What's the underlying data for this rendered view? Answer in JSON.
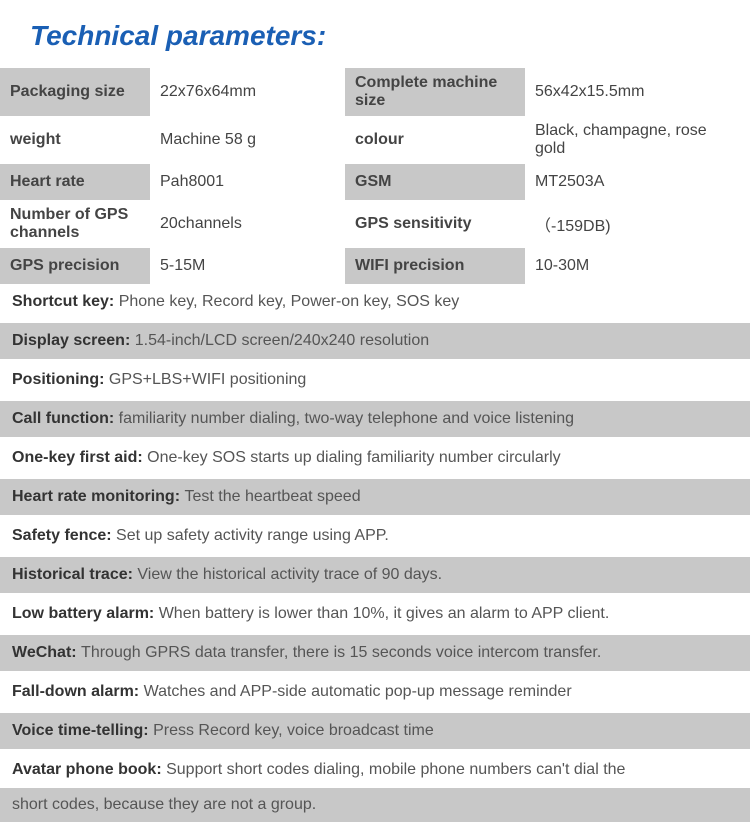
{
  "title": "Technical parameters:",
  "colors": {
    "title_color": "#1a5fb4",
    "row_gray": "#c8c8c8",
    "row_white": "#ffffff",
    "label_color": "#333333",
    "text_color": "#555555",
    "background": "#ffffff"
  },
  "typography": {
    "title_fontsize": 28,
    "title_weight": "bold",
    "title_style": "italic",
    "cell_fontsize": 16,
    "label_weight": "bold"
  },
  "grid_rows": [
    {
      "bg": "gray",
      "l1": "Packaging size",
      "v1": "22x76x64mm",
      "l2": "Complete machine size",
      "v2": "56x42x15.5mm"
    },
    {
      "bg": "white",
      "l1": "weight",
      "v1": "Machine 58 g",
      "l2": "colour",
      "v2": "Black, champagne, rose gold"
    },
    {
      "bg": "gray",
      "l1": "Heart rate",
      "v1": "Pah8001",
      "l2": "GSM",
      "v2": "MT2503A"
    },
    {
      "bg": "white",
      "l1": "Number of GPS channels",
      "v1": "20channels",
      "l2": "GPS sensitivity",
      "v2": "（-159DB)"
    },
    {
      "bg": "gray",
      "l1": "GPS precision",
      "v1": "5-15M",
      "l2": "WIFI precision",
      "v2": "10-30M"
    }
  ],
  "features": [
    {
      "bg": "white",
      "label": "Shortcut key: ",
      "text": "Phone key, Record key, Power-on key, SOS key"
    },
    {
      "bg": "gray",
      "label": "Display screen: ",
      "text": "  1.54-inch/LCD screen/240x240 resolution"
    },
    {
      "bg": "white",
      "label": "Positioning: ",
      "text": "GPS+LBS+WIFI positioning"
    },
    {
      "bg": "gray",
      "label": "Call function: ",
      "text": "familiarity number dialing, two-way telephone and voice listening"
    },
    {
      "bg": "white",
      "label": "One-key first aid: ",
      "text": "One-key SOS starts up dialing familiarity number circularly"
    },
    {
      "bg": "gray",
      "label": "Heart rate monitoring: ",
      "text": "Test the heartbeat speed"
    },
    {
      "bg": "white",
      "label": "Safety fence: ",
      "text": "Set up safety activity range using APP."
    },
    {
      "bg": "gray",
      "label": "Historical trace: ",
      "text": "View the historical activity trace of 90 days."
    },
    {
      "bg": "white",
      "label": "Low battery alarm: ",
      "text": "When battery is lower than 10%, it gives an alarm to APP client."
    },
    {
      "bg": "gray",
      "label": "WeChat: ",
      "text": "Through GPRS data transfer, there is 15 seconds voice intercom transfer."
    },
    {
      "bg": "white",
      "label": "Fall-down alarm: ",
      "text": "Watches and APP-side automatic pop-up message reminder"
    },
    {
      "bg": "gray",
      "label": "Voice time-telling: ",
      "text": "Press Record key, voice broadcast time"
    },
    {
      "bg": "white",
      "label": "Avatar phone book: ",
      "text": "Support short codes dialing, mobile phone numbers can't dial the"
    }
  ],
  "continuation": "short codes, because they are not a group."
}
